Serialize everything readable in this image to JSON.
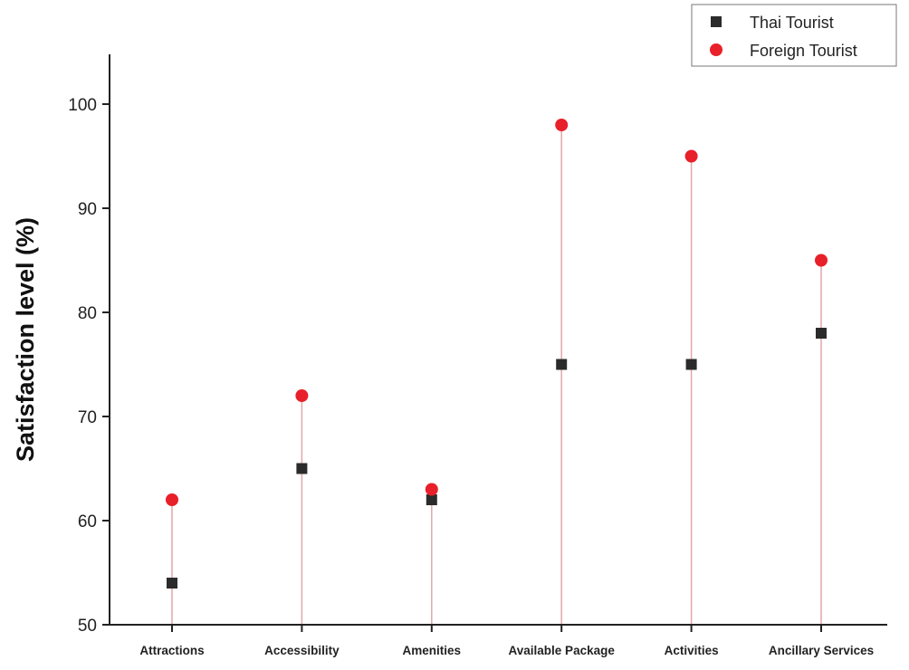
{
  "chart_data": {
    "type": "scatter",
    "title": "",
    "xlabel": "",
    "ylabel": "Satisfaction level (%)",
    "ylim": [
      50,
      105
    ],
    "yticks": [
      50,
      60,
      70,
      80,
      90,
      100
    ],
    "categories": [
      "Attractions",
      "Accessibility",
      "Amenities",
      "Available Package",
      "Activities",
      "Ancillary Services"
    ],
    "series": [
      {
        "name": "Thai Tourist",
        "marker": "square",
        "color": "#2b2b2b",
        "values": [
          54,
          65,
          62,
          75,
          75,
          78
        ]
      },
      {
        "name": "Foreign Tourist",
        "marker": "circle",
        "color": "#e8202a",
        "values": [
          62,
          72,
          63,
          98,
          95,
          85
        ]
      }
    ],
    "drop_line_color": "#e4a6a6",
    "legend_position": "top-right",
    "grid": false
  }
}
